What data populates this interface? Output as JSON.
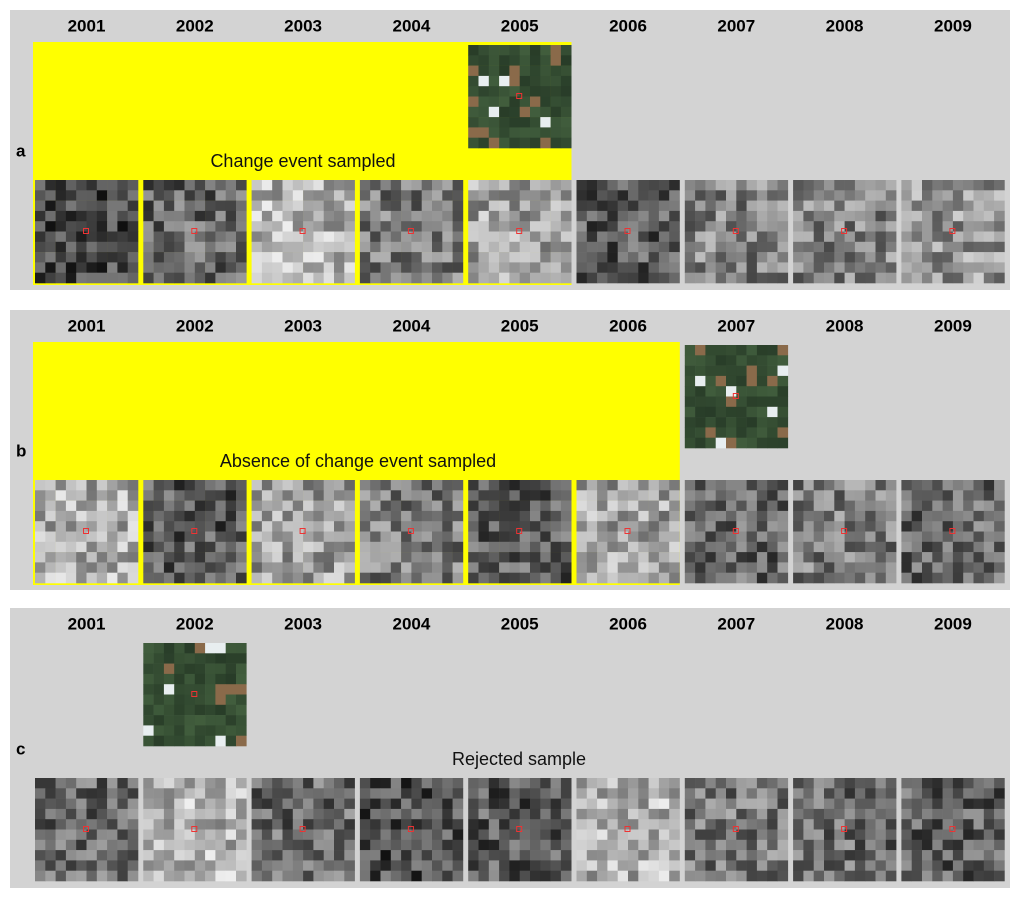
{
  "panels": [
    {
      "label": "a",
      "years": [
        "2001",
        "2002",
        "2003",
        "2004",
        "2005",
        "2006",
        "2007",
        "2008",
        "2009"
      ],
      "caption": "Change event sampled"
    },
    {
      "label": "b",
      "years": [
        "2001",
        "2002",
        "2003",
        "2004",
        "2005",
        "2006",
        "2007",
        "2008",
        "2009"
      ],
      "caption": "Absence of change event sampled"
    },
    {
      "label": "c",
      "years": [
        "2001",
        "2002",
        "2003",
        "2004",
        "2005",
        "2006",
        "2007",
        "2008",
        "2009"
      ],
      "caption": "Rejected sample"
    }
  ]
}
